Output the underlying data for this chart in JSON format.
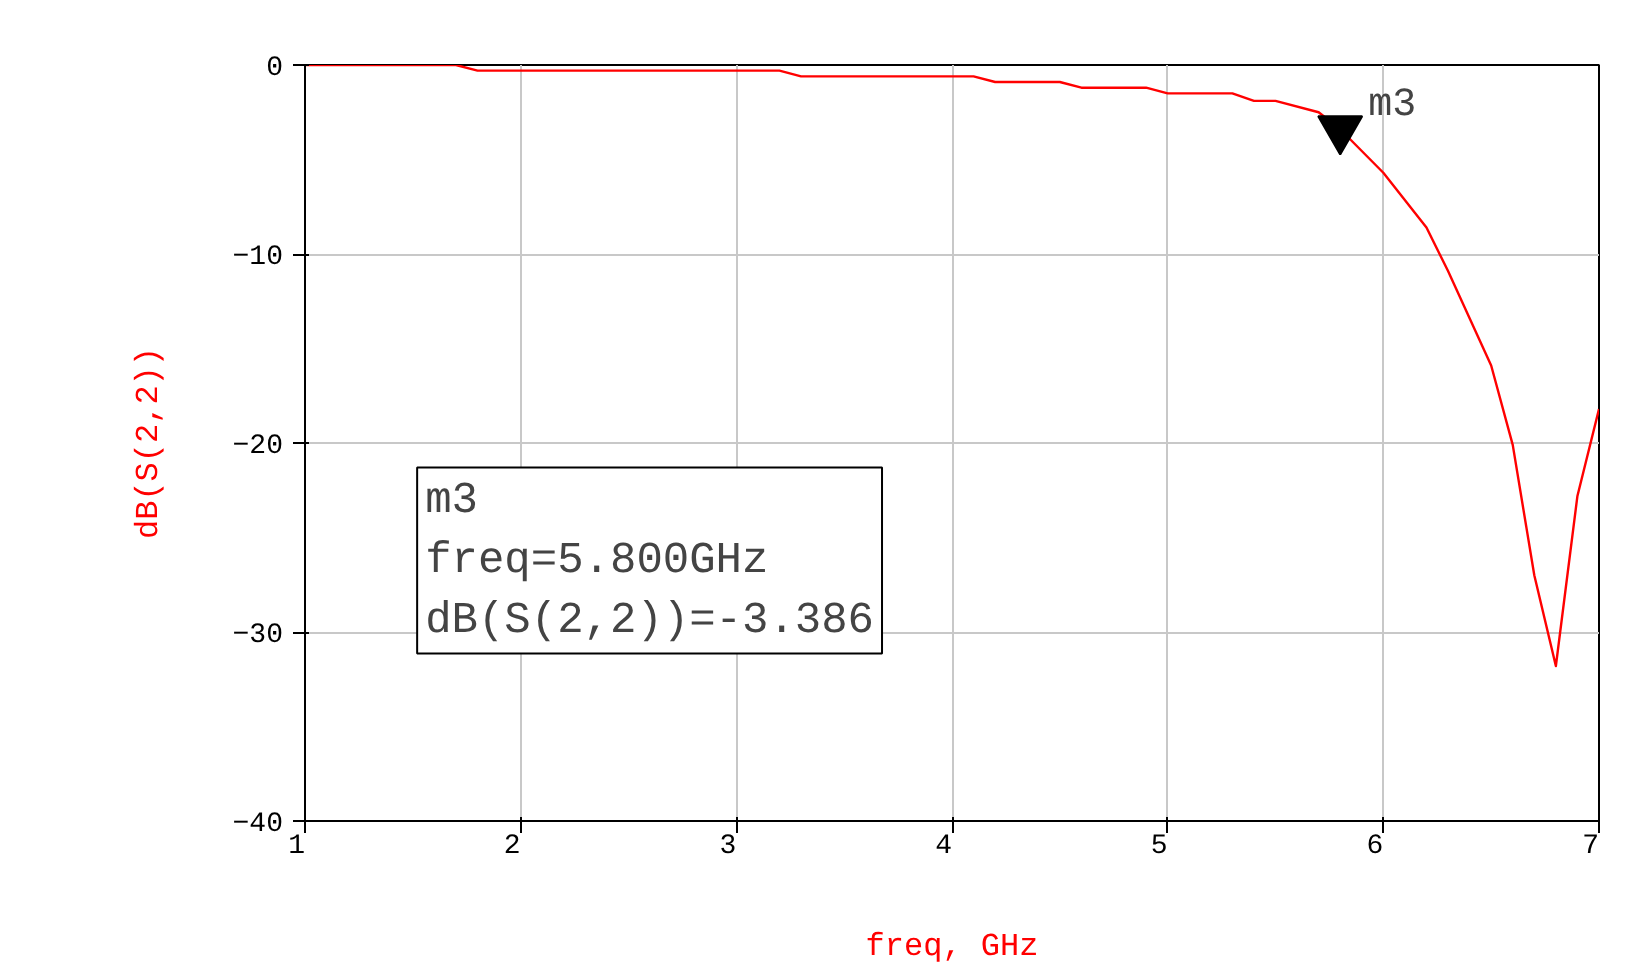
{
  "chart_data": {
    "type": "line",
    "xlabel": "freq, GHz",
    "ylabel": "dB(S(2,2))",
    "x": [
      1.0,
      1.7,
      1.8,
      3.2,
      3.3,
      4.1,
      4.2,
      4.5,
      4.6,
      4.9,
      5.0,
      5.3,
      5.4,
      5.5,
      5.7,
      5.8,
      6.0,
      6.2,
      6.3,
      6.5,
      6.6,
      6.7,
      6.8,
      6.9,
      7.0
    ],
    "series": [
      {
        "color": "#ff0000",
        "values": [
          0,
          0,
          -0.3,
          -0.3,
          -0.6,
          -0.6,
          -0.9,
          -0.9,
          -1.2,
          -1.2,
          -1.5,
          -1.5,
          -1.9,
          -1.9,
          -2.5,
          -3.4,
          -5.7,
          -8.6,
          -10.9,
          -15.9,
          -20.1,
          -27.0,
          -31.8,
          -22.8,
          -18.2
        ]
      }
    ],
    "xlim": [
      1,
      7
    ],
    "ylim": [
      -40,
      0
    ],
    "xticks": [
      1,
      2,
      3,
      4,
      5,
      6,
      7
    ],
    "yticks": [
      -40,
      -30,
      -20,
      -10,
      0
    ],
    "grid": true,
    "marker": "none",
    "line_style": "solid",
    "annotations": [
      {
        "text": "m3",
        "x": 5.8,
        "y": -3.386
      },
      "m3\nfreq=5.800GHz\ndB(S(2,2))=-3.386"
    ]
  }
}
